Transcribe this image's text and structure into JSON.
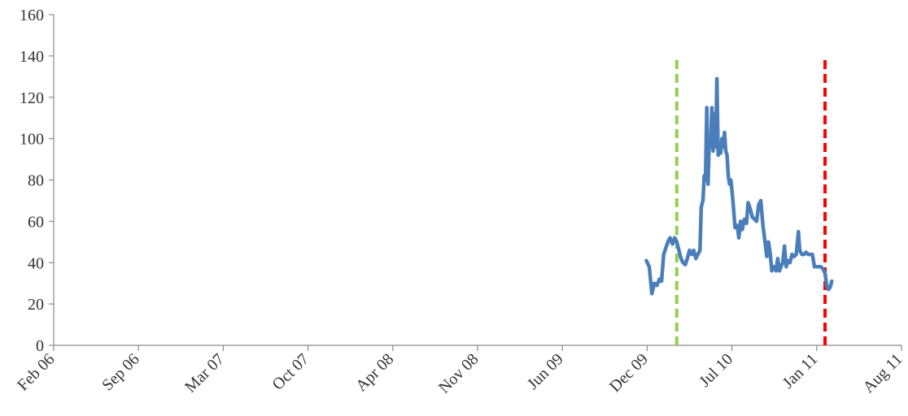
{
  "chart_data": {
    "type": "line",
    "title": "",
    "xlabel": "",
    "ylabel": "",
    "ylim": [
      0,
      160
    ],
    "y_ticks": [
      0,
      20,
      40,
      60,
      80,
      100,
      120,
      140,
      160
    ],
    "x_ticks": [
      "Feb 06",
      "Sep 06",
      "Mar 07",
      "Oct 07",
      "Apr 08",
      "Nov 08",
      "Jun 09",
      "Dec 09",
      "Jul 10",
      "Jan 11",
      "Aug 11"
    ],
    "xlim": [
      "2006-02-01",
      "2011-08-01"
    ],
    "grid": false,
    "legend": "none",
    "series": [
      {
        "color": "#4a7ebb",
        "points": [
          [
            "2009-12-05",
            41
          ],
          [
            "2009-12-12",
            38
          ],
          [
            "2009-12-18",
            25
          ],
          [
            "2009-12-24",
            30
          ],
          [
            "2009-12-30",
            29
          ],
          [
            "2010-01-05",
            32
          ],
          [
            "2010-01-10",
            31
          ],
          [
            "2010-01-15",
            44
          ],
          [
            "2010-01-20",
            47
          ],
          [
            "2010-01-25",
            50
          ],
          [
            "2010-01-30",
            52
          ],
          [
            "2010-02-05",
            49
          ],
          [
            "2010-02-10",
            52
          ],
          [
            "2010-02-15",
            50
          ],
          [
            "2010-02-20",
            46
          ],
          [
            "2010-02-25",
            42
          ],
          [
            "2010-03-02",
            40
          ],
          [
            "2010-03-07",
            39
          ],
          [
            "2010-03-12",
            42
          ],
          [
            "2010-03-17",
            46
          ],
          [
            "2010-03-22",
            44
          ],
          [
            "2010-03-27",
            46
          ],
          [
            "2010-04-01",
            42
          ],
          [
            "2010-04-06",
            44
          ],
          [
            "2010-04-11",
            46
          ],
          [
            "2010-04-14",
            67
          ],
          [
            "2010-04-18",
            70
          ],
          [
            "2010-04-21",
            82
          ],
          [
            "2010-04-24",
            80
          ],
          [
            "2010-04-27",
            115
          ],
          [
            "2010-04-30",
            78
          ],
          [
            "2010-05-03",
            100
          ],
          [
            "2010-05-06",
            96
          ],
          [
            "2010-05-09",
            115
          ],
          [
            "2010-05-12",
            94
          ],
          [
            "2010-05-15",
            112
          ],
          [
            "2010-05-18",
            96
          ],
          [
            "2010-05-21",
            129
          ],
          [
            "2010-05-24",
            92
          ],
          [
            "2010-05-27",
            95
          ],
          [
            "2010-05-30",
            93
          ],
          [
            "2010-06-02",
            100
          ],
          [
            "2010-06-05",
            96
          ],
          [
            "2010-06-08",
            103
          ],
          [
            "2010-06-11",
            94
          ],
          [
            "2010-06-14",
            92
          ],
          [
            "2010-06-17",
            82
          ],
          [
            "2010-06-20",
            78
          ],
          [
            "2010-06-23",
            80
          ],
          [
            "2010-06-28",
            70
          ],
          [
            "2010-07-03",
            57
          ],
          [
            "2010-07-08",
            58
          ],
          [
            "2010-07-12",
            52
          ],
          [
            "2010-07-16",
            60
          ],
          [
            "2010-07-20",
            56
          ],
          [
            "2010-07-25",
            61
          ],
          [
            "2010-07-30",
            59
          ],
          [
            "2010-08-03",
            69
          ],
          [
            "2010-08-08",
            66
          ],
          [
            "2010-08-13",
            62
          ],
          [
            "2010-08-18",
            61
          ],
          [
            "2010-08-23",
            60
          ],
          [
            "2010-08-28",
            68
          ],
          [
            "2010-09-02",
            70
          ],
          [
            "2010-09-07",
            58
          ],
          [
            "2010-09-12",
            50
          ],
          [
            "2010-09-16",
            43
          ],
          [
            "2010-09-20",
            50
          ],
          [
            "2010-09-24",
            45
          ],
          [
            "2010-09-28",
            36
          ],
          [
            "2010-10-03",
            38
          ],
          [
            "2010-10-08",
            36
          ],
          [
            "2010-10-12",
            42
          ],
          [
            "2010-10-16",
            36
          ],
          [
            "2010-10-20",
            38
          ],
          [
            "2010-10-24",
            40
          ],
          [
            "2010-10-28",
            48
          ],
          [
            "2010-11-01",
            38
          ],
          [
            "2010-11-05",
            41
          ],
          [
            "2010-11-10",
            40
          ],
          [
            "2010-11-15",
            44
          ],
          [
            "2010-11-20",
            43
          ],
          [
            "2010-11-25",
            44
          ],
          [
            "2010-11-30",
            55
          ],
          [
            "2010-12-03",
            46
          ],
          [
            "2010-12-08",
            44
          ],
          [
            "2010-12-13",
            44
          ],
          [
            "2010-12-18",
            45
          ],
          [
            "2010-12-23",
            44
          ],
          [
            "2010-12-28",
            44
          ],
          [
            "2011-01-02",
            44
          ],
          [
            "2011-01-07",
            38
          ],
          [
            "2011-01-12",
            38
          ],
          [
            "2011-01-17",
            38
          ],
          [
            "2011-01-22",
            38
          ],
          [
            "2011-01-27",
            37
          ],
          [
            "2011-02-01",
            35
          ],
          [
            "2011-02-05",
            29
          ],
          [
            "2011-02-09",
            27
          ],
          [
            "2011-02-13",
            28
          ],
          [
            "2011-02-17",
            31
          ]
        ]
      }
    ],
    "vlines": [
      {
        "x": "2010-02-15",
        "ymax": 140,
        "color": "#92d050",
        "style": "dashed"
      },
      {
        "x": "2011-02-01",
        "ymax": 140,
        "color": "#ff0000",
        "style": "dashed"
      }
    ]
  }
}
